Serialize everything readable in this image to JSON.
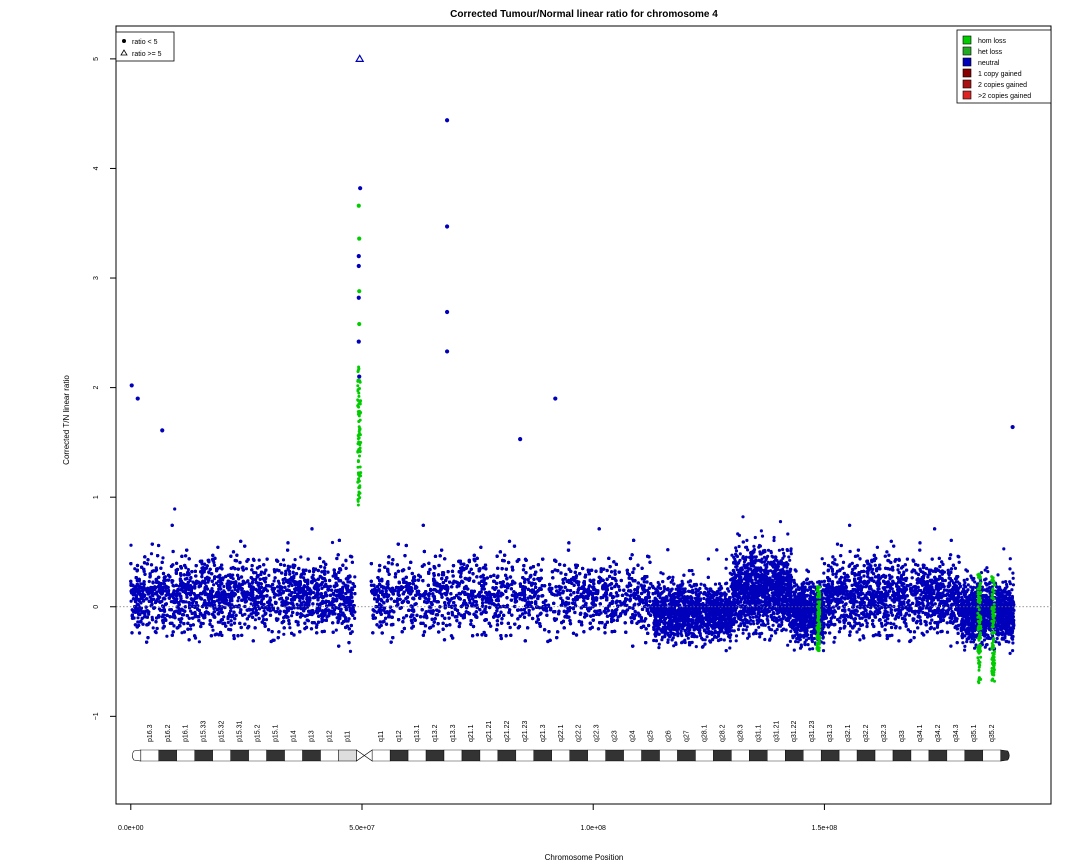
{
  "chart_data": {
    "type": "scatter",
    "title": "Corrected Tumour/Normal linear ratio for chromosome  4",
    "xlabel": "Chromosome Position",
    "ylabel": "Corrected T/N linear ratio",
    "xlim": [
      -3200000,
      199000000
    ],
    "ylim": [
      -1.8,
      5.3
    ],
    "x_ticks": [
      {
        "value": 0,
        "label": "0.0e+00"
      },
      {
        "value": 50000000,
        "label": "5.0e+07"
      },
      {
        "value": 100000000,
        "label": "1.0e+08"
      },
      {
        "value": 150000000,
        "label": "1.5e+08"
      }
    ],
    "y_ticks": [
      {
        "value": -1,
        "label": "−1"
      },
      {
        "value": 0,
        "label": "0"
      },
      {
        "value": 1,
        "label": "1"
      },
      {
        "value": 2,
        "label": "2"
      },
      {
        "value": 3,
        "label": "3"
      },
      {
        "value": 4,
        "label": "4"
      },
      {
        "value": 5,
        "label": "5"
      }
    ],
    "reference_line": {
      "y": 0,
      "style": "dotted"
    },
    "legend_shape": {
      "position": "top-left",
      "entries": [
        {
          "label": "ratio < 5",
          "symbol": "filled-circle"
        },
        {
          "label": "ratio >= 5",
          "symbol": "open-triangle"
        }
      ]
    },
    "legend_status": {
      "position": "top-right",
      "entries": [
        {
          "label": "hom loss",
          "color": "#00cc00"
        },
        {
          "label": "het loss",
          "color": "#22aa22"
        },
        {
          "label": "neutral",
          "color": "#0000bb"
        },
        {
          "label": "1 copy gained",
          "color": "#880000"
        },
        {
          "label": "2 copies gained",
          "color": "#aa1111"
        },
        {
          "label": ">2 copies gained",
          "color": "#dd2222"
        }
      ]
    },
    "segments": [
      {
        "status": "neutral",
        "x_range": [
          0,
          48500000
        ],
        "center": 0.1,
        "spread": 0.55
      },
      {
        "status": "neutral",
        "x_range": [
          52000000,
          113000000
        ],
        "center": 0.1,
        "spread": 0.55
      },
      {
        "status": "neutral",
        "x_range": [
          113000000,
          130000000
        ],
        "center": -0.05,
        "spread": 0.42
      },
      {
        "status": "neutral",
        "x_range": [
          130000000,
          143000000
        ],
        "center": 0.15,
        "spread": 0.6
      },
      {
        "status": "neutral",
        "x_range": [
          143000000,
          150000000
        ],
        "center": -0.05,
        "spread": 0.45
      },
      {
        "status": "neutral",
        "x_range": [
          150000000,
          179500000
        ],
        "center": 0.1,
        "spread": 0.55
      },
      {
        "status": "neutral",
        "x_range": [
          179500000,
          191000000
        ],
        "center": -0.05,
        "spread": 0.45
      }
    ],
    "highlighted_points": [
      {
        "x": 200000,
        "y": 2.02,
        "status": "neutral"
      },
      {
        "x": 1500000,
        "y": 1.9,
        "status": "neutral"
      },
      {
        "x": 6800000,
        "y": 1.61,
        "status": "neutral"
      },
      {
        "x": 49500000,
        "y": 5.0,
        "status": "neutral",
        "symbol": "open-triangle"
      },
      {
        "x": 49600000,
        "y": 3.82,
        "status": "neutral"
      },
      {
        "x": 49300000,
        "y": 3.66,
        "status": "hom loss"
      },
      {
        "x": 49400000,
        "y": 3.36,
        "status": "hom loss"
      },
      {
        "x": 49300000,
        "y": 3.2,
        "status": "neutral"
      },
      {
        "x": 49300000,
        "y": 3.11,
        "status": "neutral"
      },
      {
        "x": 49400000,
        "y": 2.88,
        "status": "hom loss"
      },
      {
        "x": 49300000,
        "y": 2.82,
        "status": "neutral"
      },
      {
        "x": 49400000,
        "y": 2.58,
        "status": "hom loss"
      },
      {
        "x": 49300000,
        "y": 2.42,
        "status": "neutral"
      },
      {
        "x": 49400000,
        "y": 2.1,
        "status": "neutral"
      },
      {
        "x": 68400000,
        "y": 4.44,
        "status": "neutral"
      },
      {
        "x": 68400000,
        "y": 3.47,
        "status": "neutral"
      },
      {
        "x": 68400000,
        "y": 2.69,
        "status": "neutral"
      },
      {
        "x": 68400000,
        "y": 2.33,
        "status": "neutral"
      },
      {
        "x": 91800000,
        "y": 1.9,
        "status": "neutral"
      },
      {
        "x": 84200000,
        "y": 1.53,
        "status": "neutral"
      },
      {
        "x": 190700000,
        "y": 1.64,
        "status": "neutral"
      }
    ],
    "ideogram": {
      "bands": [
        "p16.3",
        "p16.2",
        "p16.1",
        "p15.33",
        "p15.32",
        "p15.31",
        "p15.2",
        "p15.1",
        "p14",
        "p13",
        "p12",
        "p11",
        "q11",
        "q12",
        "q13.1",
        "q13.2",
        "q13.3",
        "q21.1",
        "q21.21",
        "q21.22",
        "q21.23",
        "q21.3",
        "q22.1",
        "q22.2",
        "q22.3",
        "q23",
        "q24",
        "q25",
        "q26",
        "q27",
        "q28.1",
        "q28.2",
        "q28.3",
        "q31.1",
        "q31.21",
        "q31.22",
        "q31.23",
        "q31.3",
        "q32.1",
        "q32.2",
        "q32.3",
        "q33",
        "q34.1",
        "q34.2",
        "q34.3",
        "q35.1",
        "q35.2"
      ]
    }
  }
}
